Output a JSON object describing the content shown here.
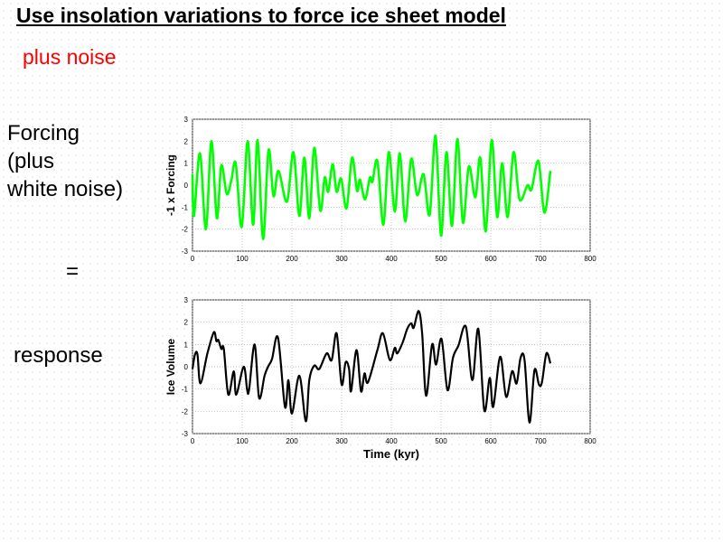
{
  "slide": {
    "title": "Use insolation variations to force ice sheet model",
    "subtitle": "plus noise",
    "left_labels": {
      "forcing_line1": "Forcing",
      "forcing_line2": "(plus",
      "forcing_line3": "white noise)",
      "equals": "=",
      "response": "response"
    },
    "colors": {
      "title": "#000000",
      "subtitle": "#ff0000"
    }
  },
  "chart_data": [
    {
      "type": "line",
      "ylabel": "-1 x Forcing",
      "xlabel": "",
      "xlim": [
        0,
        800
      ],
      "ylim": [
        -3,
        3
      ],
      "xticks": [
        "0",
        "100",
        "200",
        "300",
        "400",
        "500",
        "600",
        "700",
        "800"
      ],
      "yticks": [
        "-3",
        "-2",
        "-1",
        "0",
        "1",
        "2",
        "3"
      ],
      "grid": true,
      "color": "#00ff00",
      "x": [
        0,
        3,
        15,
        27,
        38,
        49,
        58,
        69,
        78,
        87,
        99,
        111,
        122,
        131,
        142,
        153,
        163,
        173,
        190,
        203,
        215,
        225,
        235,
        245,
        257,
        266,
        273,
        282,
        290,
        299,
        310,
        321,
        331,
        337,
        347,
        357,
        362,
        372,
        384,
        395,
        407,
        417,
        428,
        440,
        452,
        465,
        477,
        489,
        500,
        511,
        522,
        533,
        544,
        556,
        569,
        579,
        590,
        602,
        613,
        623,
        634,
        646,
        658,
        674,
        682,
        696,
        708,
        720
      ],
      "y": [
        0.5,
        -1.4,
        1.45,
        -2.0,
        2.0,
        -1.5,
        0.9,
        -0.4,
        0.2,
        1.0,
        -1.9,
        2.0,
        -1.8,
        2.05,
        -2.45,
        1.6,
        -0.5,
        0.65,
        -0.75,
        1.5,
        -1.4,
        1.25,
        -1.5,
        1.7,
        -1.15,
        0.35,
        -0.3,
        0.95,
        -0.3,
        0.3,
        -1.05,
        1.25,
        -0.25,
        0.25,
        -0.65,
        0.35,
        0.15,
        1.1,
        -1.8,
        1.5,
        -1.2,
        1.45,
        -1.65,
        1.2,
        -0.45,
        0.5,
        -1.35,
        2.25,
        -2.3,
        1.5,
        -1.85,
        2.1,
        -1.7,
        0.85,
        -0.55,
        1.25,
        -2.1,
        2.05,
        -1.45,
        1.0,
        -1.45,
        1.5,
        -0.65,
        0.0,
        -0.2,
        1.1,
        -1.25,
        0.65
      ]
    },
    {
      "type": "line",
      "ylabel": "Ice Volume",
      "xlabel": "Time (kyr)",
      "xlim": [
        0,
        800
      ],
      "ylim": [
        -3,
        3
      ],
      "xticks": [
        "0",
        "100",
        "200",
        "300",
        "400",
        "500",
        "600",
        "700",
        "800"
      ],
      "yticks": [
        "-3",
        "-2",
        "-1",
        "0",
        "1",
        "2",
        "3"
      ],
      "grid": true,
      "color": "#000000",
      "x": [
        0,
        5,
        10,
        16,
        30,
        43,
        48,
        52,
        58,
        63,
        72,
        83,
        88,
        103,
        110,
        114,
        125,
        134,
        145,
        152,
        160,
        172,
        186,
        193,
        200,
        215,
        228,
        235,
        245,
        255,
        270,
        280,
        290,
        300,
        308,
        315,
        319,
        330,
        339,
        346,
        353,
        372,
        383,
        397,
        407,
        412,
        423,
        432,
        440,
        445,
        455,
        462,
        470,
        482,
        490,
        501,
        513,
        524,
        535,
        550,
        563,
        575,
        587,
        598,
        605,
        619,
        631,
        643,
        652,
        660,
        668,
        678,
        688,
        697,
        703,
        712,
        720
      ],
      "y": [
        -0.1,
        0.55,
        0.55,
        -0.75,
        0.6,
        1.55,
        1.15,
        1.2,
        0.8,
        0.8,
        -1.25,
        -0.2,
        -1.25,
        0.0,
        -1.05,
        -1.0,
        1.0,
        -1.4,
        -0.4,
        0.0,
        0.35,
        1.3,
        -1.8,
        -0.6,
        -2.1,
        -0.4,
        -2.45,
        -0.6,
        0.05,
        -0.1,
        0.6,
        0.3,
        1.5,
        -0.8,
        0.2,
        -0.1,
        -1.1,
        0.75,
        -1.1,
        -0.3,
        -0.7,
        0.75,
        1.5,
        0.3,
        0.85,
        0.6,
        1.1,
        1.7,
        1.95,
        1.75,
        2.5,
        1.5,
        -1.3,
        1.0,
        0.1,
        1.25,
        -1.05,
        0.4,
        0.95,
        1.8,
        -0.6,
        1.7,
        -1.95,
        -0.5,
        -1.8,
        0.45,
        -1.35,
        -0.2,
        -0.75,
        0.4,
        0.3,
        -2.5,
        -0.15,
        -0.8,
        -0.7,
        0.6,
        0.15
      ]
    }
  ]
}
